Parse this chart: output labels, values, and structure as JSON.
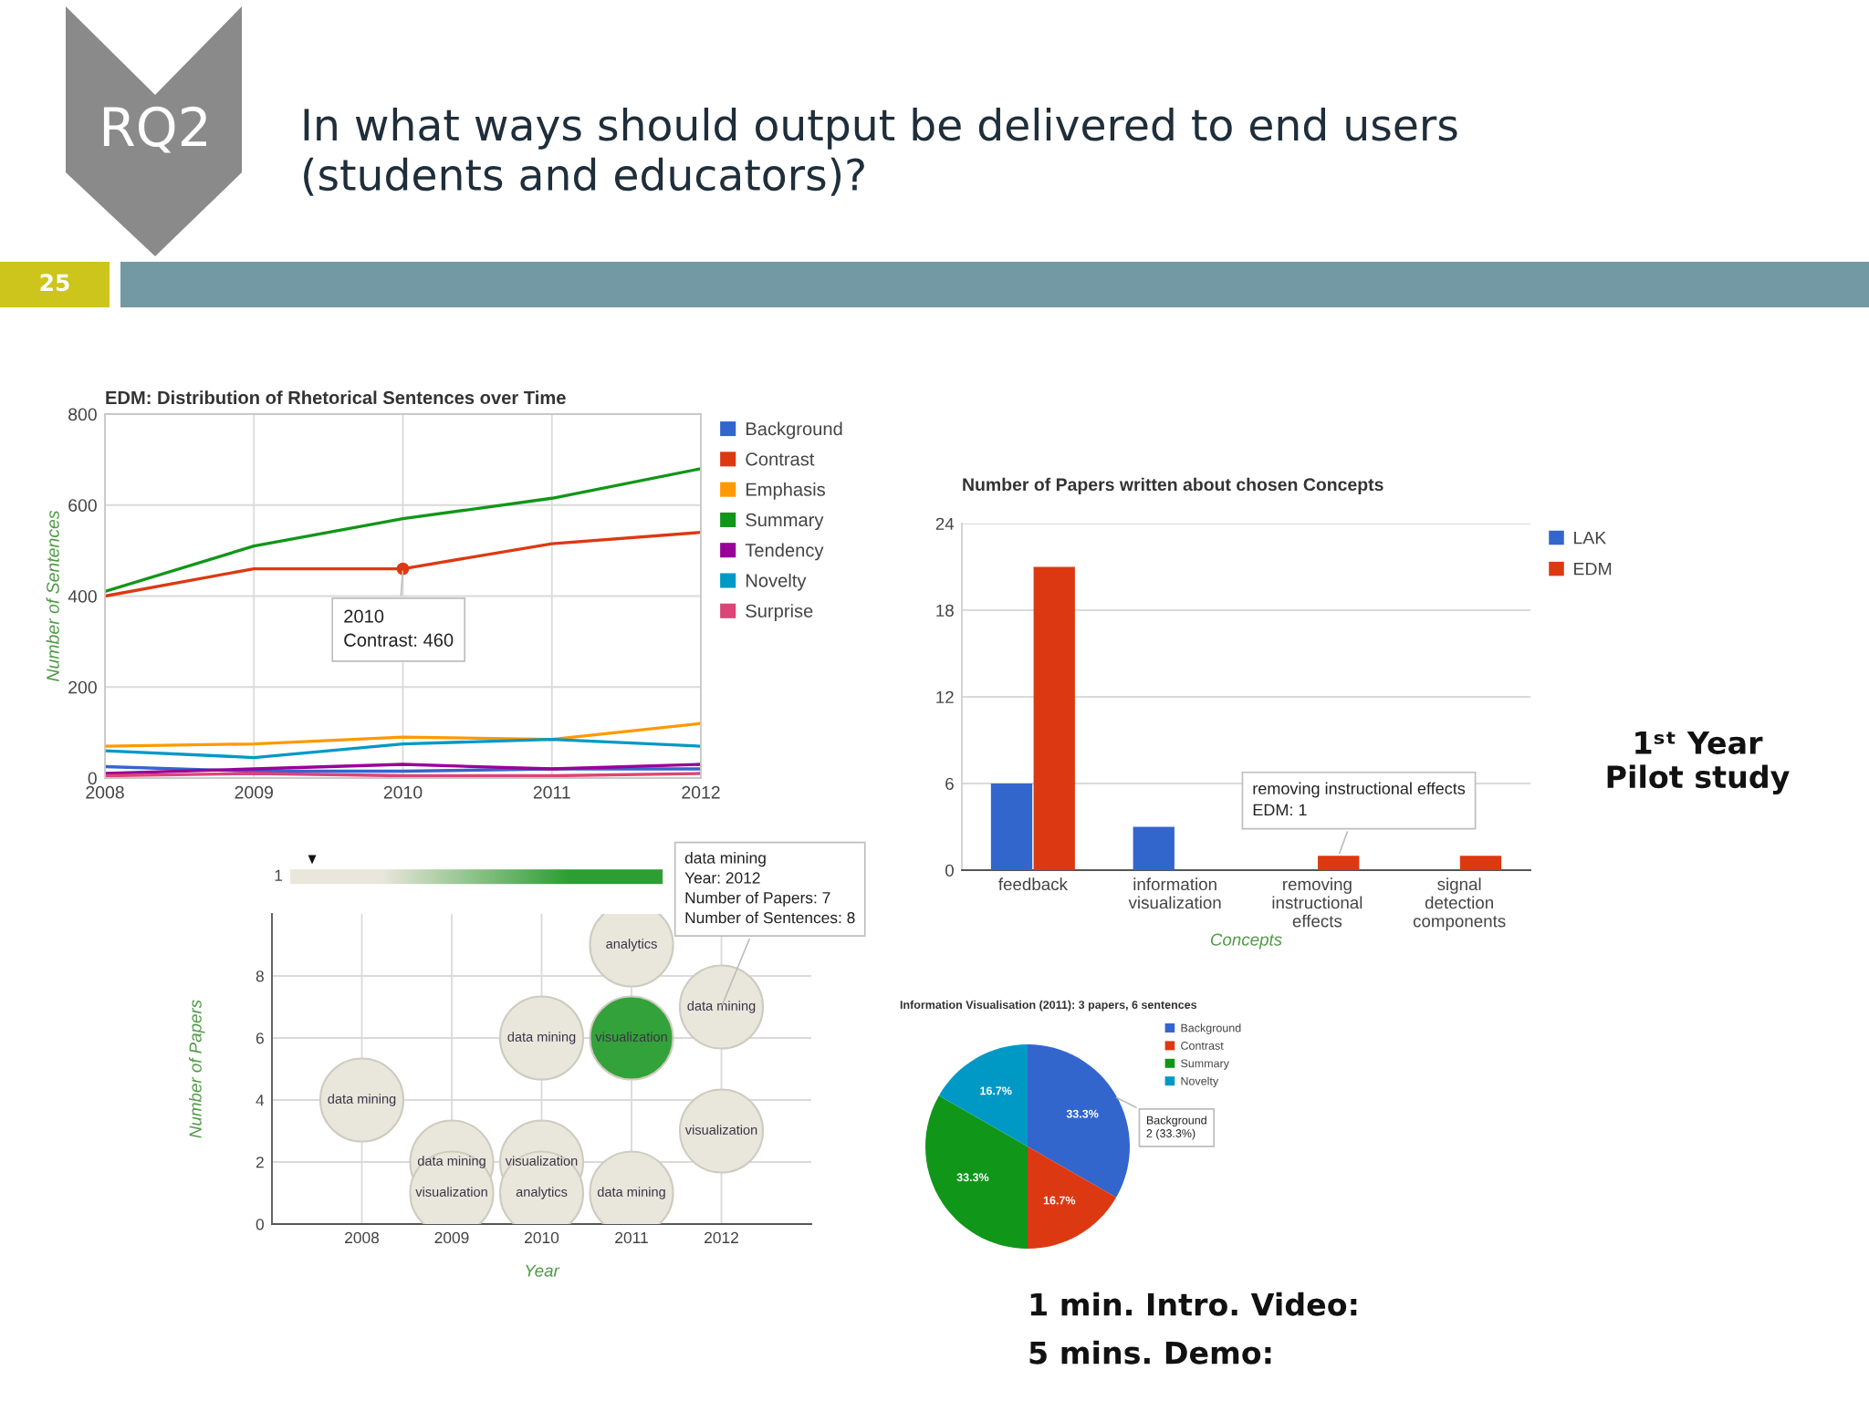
{
  "chart_data": [
    {
      "type": "other",
      "title": "In what ways should output be delivered to end users (students and educators)?",
      "annotations": [
        "RQ2",
        "25",
        "1ˢᵗ Year\nPilot study",
        "1 min. Intro. Video:",
        "5 mins. Demo:"
      ]
    },
    {
      "type": "line",
      "title": "EDM: Distribution of Rhetorical Sentences over Time",
      "ylabel": "Number of Sentences",
      "x": [
        2008,
        2009,
        2010,
        2011,
        2012
      ],
      "xlim": [
        2008,
        2012
      ],
      "xticks": [
        2008,
        2009,
        2010,
        2011,
        2012
      ],
      "ylim": [
        0,
        800
      ],
      "yticks": [
        0,
        200,
        400,
        600,
        800
      ],
      "grid": true,
      "legend": "right",
      "series": [
        {
          "name": "Background",
          "color": "#3366cc",
          "values": [
            25,
            15,
            15,
            20,
            20
          ]
        },
        {
          "name": "Contrast",
          "color": "#dc3912",
          "values": [
            400,
            460,
            460,
            515,
            540
          ]
        },
        {
          "name": "Emphasis",
          "color": "#ff9900",
          "values": [
            70,
            75,
            90,
            85,
            120
          ]
        },
        {
          "name": "Summary",
          "color": "#109618",
          "values": [
            410,
            510,
            570,
            615,
            680
          ]
        },
        {
          "name": "Tendency",
          "color": "#990099",
          "values": [
            10,
            20,
            30,
            20,
            30
          ]
        },
        {
          "name": "Novelty",
          "color": "#0099c6",
          "values": [
            60,
            45,
            75,
            85,
            70
          ]
        },
        {
          "name": "Surprise",
          "color": "#dd4477",
          "values": [
            5,
            10,
            5,
            5,
            10
          ]
        }
      ],
      "annotations": [
        {
          "text": "2010\nContrast: 460",
          "x": 2010,
          "y": 460
        }
      ]
    },
    {
      "type": "bar",
      "title": "Number of Papers written about chosen Concepts",
      "xlabel": "Concepts",
      "categories": [
        "feedback",
        "information visualization",
        "removing instructional effects",
        "signal detection components"
      ],
      "ylim": [
        0,
        24
      ],
      "yticks": [
        0,
        6,
        12,
        18,
        24
      ],
      "grid": "y",
      "legend": "right",
      "series": [
        {
          "name": "LAK",
          "color": "#3366cc",
          "values": [
            6,
            3,
            null,
            null
          ]
        },
        {
          "name": "EDM",
          "color": "#dc3912",
          "values": [
            21,
            null,
            1,
            1
          ]
        }
      ],
      "annotations": [
        {
          "text": "removing instructional effects\nEDM: 1",
          "x": "removing instructional effects",
          "y": 1
        }
      ]
    },
    {
      "type": "bubble",
      "xlabel": "Year",
      "ylabel": "Number of Papers",
      "xlim": [
        2007,
        2013
      ],
      "xticks": [
        2008,
        2009,
        2010,
        2011,
        2012
      ],
      "ylim": [
        0,
        10
      ],
      "yticks": [
        0,
        2,
        4,
        6,
        8
      ],
      "grid": true,
      "series": [
        {
          "name": "data mining",
          "x": [
            2008,
            2009,
            2010,
            2011,
            2012
          ],
          "values": [
            4,
            2,
            6,
            1,
            7
          ],
          "sizes": [
            1,
            1,
            1,
            1,
            1
          ],
          "colors": [
            "#e9e6dc",
            "#e9e6dc",
            "#e9e6dc",
            "#e9e6dc",
            "#e9e6dc"
          ]
        },
        {
          "name": "visualization",
          "x": [
            2009,
            2010,
            2011,
            2012
          ],
          "values": [
            1,
            2,
            6,
            3
          ],
          "sizes": [
            1,
            1,
            1,
            1
          ],
          "colors": [
            "#e9e6dc",
            "#e9e6dc",
            "#33a23a",
            "#e9e6dc"
          ]
        },
        {
          "name": "analytics",
          "x": [
            2010,
            2011
          ],
          "values": [
            1,
            9
          ],
          "sizes": [
            1,
            1
          ],
          "colors": [
            "#e9e6dc",
            "#e9e6dc"
          ]
        }
      ],
      "annotations": [
        {
          "text": "data mining\nYear: 2012\nNumber of Papers: 7\nNumber of Sentences: 8",
          "x": 2012,
          "y": 7
        },
        "1"
      ]
    },
    {
      "type": "pie",
      "title": "Information Visualisation (2011): 3 papers, 6 sentences",
      "categories": [
        "Background",
        "Contrast",
        "Summary",
        "Novelty"
      ],
      "values": [
        33.3,
        16.7,
        33.3,
        16.7
      ],
      "colors": [
        "#3366cc",
        "#dc3912",
        "#109618",
        "#0099c6"
      ],
      "value_labels": [
        "33.3%",
        "16.7%",
        "33.3%",
        "16.7%"
      ],
      "legend": "right",
      "annotations": [
        "Background\n2 (33.3%)"
      ]
    }
  ]
}
